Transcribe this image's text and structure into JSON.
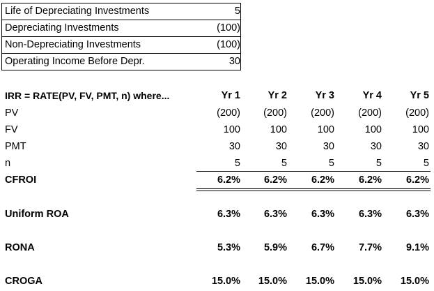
{
  "inputs": [
    {
      "label": "Life of Depreciating Investments",
      "value": "5"
    },
    {
      "label": "Depreciating Investments",
      "value": "(100)"
    },
    {
      "label": "Non-Depreciating Investments",
      "value": "(100)"
    },
    {
      "label": "Operating Income Before Depr.",
      "value": "30"
    }
  ],
  "table": {
    "header": "IRR = RATE(PV, FV, PMT, n) where...",
    "years": [
      "Yr 1",
      "Yr 2",
      "Yr 3",
      "Yr 4",
      "Yr 5"
    ],
    "rows": [
      {
        "label": "PV",
        "values": [
          "(200)",
          "(200)",
          "(200)",
          "(200)",
          "(200)"
        ]
      },
      {
        "label": "FV",
        "values": [
          "100",
          "100",
          "100",
          "100",
          "100"
        ]
      },
      {
        "label": "PMT",
        "values": [
          "30",
          "30",
          "30",
          "30",
          "30"
        ]
      },
      {
        "label": "n",
        "values": [
          "5",
          "5",
          "5",
          "5",
          "5"
        ]
      }
    ],
    "cfroi": {
      "label": "CFROI",
      "values": [
        "6.2%",
        "6.2%",
        "6.2%",
        "6.2%",
        "6.2%"
      ]
    }
  },
  "metrics": [
    {
      "label": "Uniform ROA",
      "values": [
        "6.3%",
        "6.3%",
        "6.3%",
        "6.3%",
        "6.3%"
      ]
    },
    {
      "label": "RONA",
      "values": [
        "5.3%",
        "5.9%",
        "6.7%",
        "7.7%",
        "9.1%"
      ]
    },
    {
      "label": "CROGA",
      "values": [
        "15.0%",
        "15.0%",
        "15.0%",
        "15.0%",
        "15.0%"
      ]
    }
  ]
}
